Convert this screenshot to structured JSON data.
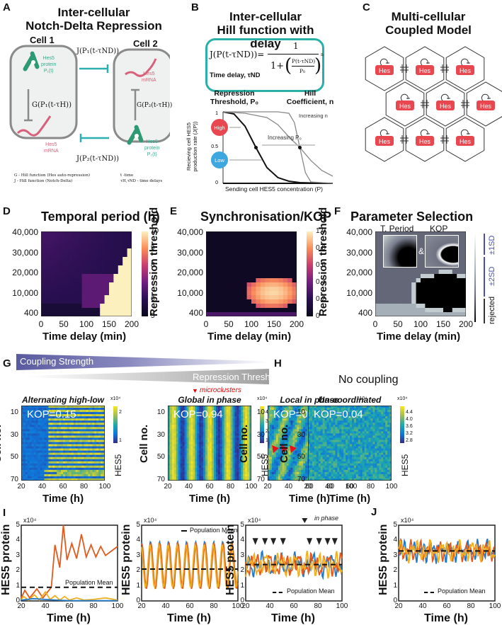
{
  "panels": {
    "A": {
      "label": "A",
      "title_line1": "Inter-cellular",
      "title_line2": "Notch-Delta Repression",
      "cell1": "Cell 1",
      "cell2": "Cell 2",
      "protein1": [
        "Hes5",
        "protein",
        "P₁(t)"
      ],
      "protein2": [
        "Hes5",
        "protein",
        "P₂(t)"
      ],
      "mrna": [
        "Hes5",
        "mRNA"
      ],
      "j1": "J(P₁(t-τND))",
      "j2": "J(P₂(t-τND))",
      "g1": "G(P₁(t-τH))",
      "g2": "G(P₂(t-τH))",
      "legend_g": "G - Hill function (Hes auto-repression)",
      "legend_j": "J -  Hill function (Notch-Delta)",
      "legend_t": "t -time",
      "legend_tau": "τH,τND - time delays",
      "colors": {
        "protein": "#3aaa8a",
        "mrna": "#d9607a",
        "inhibit": "#2bb0b0"
      }
    },
    "B": {
      "label": "B",
      "title_line1": "Inter-cellular",
      "title_line2": "Hill function with delay",
      "formula_lhs": "J(P(t-τND))=",
      "formula_num": "1",
      "formula_den_pre": "1+",
      "formula_inner_num": "P(t-τND)",
      "formula_inner_den": "P₀",
      "formula_exp": "n",
      "time_delay": "Time delay, τND",
      "threshold_l1": "Repression",
      "threshold_l2": "Threshold, P₀",
      "hill_l1": "Hill",
      "hill_l2": "Coefficient, n",
      "ylabel_l1": "Recieving cell HES5",
      "ylabel_l2": "production rate (J(P))",
      "xlabel": "Sending cell HES5 concentration (P)",
      "yticks": [
        "1",
        "0.5",
        "0"
      ],
      "high": "High",
      "low": "Low",
      "inc_p0": "Increasing P₀",
      "inc_n": "Increasing n",
      "colors": {
        "box": "#2bb0a8",
        "high": "#e8474f",
        "low": "#3ea7e0"
      }
    },
    "C": {
      "label": "C",
      "title_line1": "Multi-cellular",
      "title_line2": "Coupled Model",
      "hes": "Hes",
      "hes_color": "#e8474f"
    },
    "D": {
      "label": "D",
      "title": "Temporal period (h)",
      "ylabel": "Repression threshold",
      "xlabel": "Time delay (min)",
      "yticks": [
        "40,000",
        "30,000",
        "20,000",
        "10,000",
        "400"
      ],
      "xticks": [
        "0",
        "50",
        "100",
        "150",
        "200"
      ],
      "cbar_ticks": [
        "10",
        "9",
        "8",
        "7",
        "6",
        "5"
      ]
    },
    "E": {
      "label": "E",
      "title": "Synchronisation/KOP",
      "ylabel": "Repression threshold",
      "xlabel": "Time delay (min)",
      "yticks": [
        "40,000",
        "30,000",
        "20,000",
        "10,000",
        "400"
      ],
      "xticks": [
        "0",
        "50",
        "100",
        "150",
        "200"
      ],
      "cbar_ticks": [
        "1.0",
        "0.8",
        "0.6",
        "0.4",
        "0.2",
        "0"
      ]
    },
    "F": {
      "label": "F",
      "title": "Parameter Selection",
      "inset1": "T. Period",
      "inset2": "KOP",
      "amp": "&",
      "ylabel": "Repression threshold",
      "xlabel": "Time delay (min)",
      "yticks": [
        "40,000",
        "30,000",
        "20,000",
        "10,000",
        "400"
      ],
      "xticks": [
        "0",
        "50",
        "100",
        "150",
        "200"
      ],
      "legend_1sd": "±1SD",
      "legend_2sd": "±2SD",
      "legend_rej": "rejected",
      "legend_color": "#4b4fa8"
    },
    "G": {
      "label": "G",
      "coupling": "Coupling Strength",
      "threshold": "Repression Threshold",
      "microclusters": "microclusters",
      "kymographs": [
        {
          "title": "Alternating high-low",
          "kop": "KOP=0.15",
          "cbar_ticks": [
            "2",
            "1"
          ]
        },
        {
          "title": "Global in phase",
          "kop": "KOP=0.94",
          "cbar_ticks": [
            "4",
            "3",
            "2",
            "1"
          ]
        },
        {
          "title": "Local in phase",
          "kop": "KOP=0.28",
          "cbar_ticks": [
            "3",
            "2"
          ]
        }
      ]
    },
    "H": {
      "label": "H",
      "title": "No coupling",
      "kymograph": {
        "title": "Un-coordinated",
        "kop": "KOP=0.04",
        "cbar_ticks": [
          "4.4",
          "4.0",
          "3.6",
          "3.2",
          "2.8"
        ]
      }
    },
    "kymo_common": {
      "ylabel": "Cell no.",
      "xlabel": "Time (h)",
      "yticks": [
        "10",
        "30",
        "50",
        "70"
      ],
      "xticks": [
        "20",
        "40",
        "60",
        "80",
        "100"
      ],
      "cbar_label": "HES5",
      "cbar_exp": "x10⁴"
    },
    "I": {
      "label": "I"
    },
    "J": {
      "label": "J"
    },
    "ts_common": {
      "ylabel": "HES5 protein",
      "xlabel": "Time (h)",
      "yticks": [
        "5",
        "4",
        "3",
        "2",
        "1",
        "0"
      ],
      "xticks": [
        "20",
        "40",
        "60",
        "80",
        "100"
      ],
      "exp": "x10⁴",
      "mean_label": "Population Mean",
      "in_phase": "in phase"
    }
  },
  "chart_data": [
    {
      "type": "line",
      "title": "Inter-cellular Hill function with delay",
      "xlabel": "Sending cell HES5 concentration (P)",
      "ylabel": "Recieving cell HES5 production rate (J(P))",
      "ylim": [
        0,
        1
      ],
      "series": [
        {
          "name": "low P0",
          "x": [
            0,
            0.1,
            0.2,
            0.3,
            0.4,
            0.5,
            0.6,
            0.7,
            0.8,
            1.0
          ],
          "y": [
            1,
            0.97,
            0.8,
            0.5,
            0.22,
            0.08,
            0.03,
            0.01,
            0.005,
            0
          ]
        },
        {
          "name": "high P0",
          "x": [
            0,
            0.2,
            0.4,
            0.5,
            0.6,
            0.7,
            0.8,
            0.9,
            1.0
          ],
          "y": [
            1,
            0.98,
            0.92,
            0.82,
            0.65,
            0.5,
            0.32,
            0.18,
            0.1
          ]
        },
        {
          "name": "high n",
          "x": [
            0,
            0.5,
            0.6,
            0.65,
            0.7,
            0.75,
            0.8,
            1.0
          ],
          "y": [
            1,
            1,
            0.98,
            0.85,
            0.5,
            0.15,
            0.02,
            0
          ]
        }
      ]
    },
    {
      "type": "heatmap",
      "title": "Temporal period (h)",
      "xlabel": "Time delay (min)",
      "ylabel": "Repression threshold",
      "xlim": [
        0,
        200
      ],
      "ylim": [
        400,
        40000
      ],
      "colorbar_range": [
        5,
        10
      ],
      "description": "Mostly ~5.5-6 h; elevated ~7 h for delay 90-200 and threshold 5,000-20,000; >10 h in lower-right triangle (delay>130)"
    },
    {
      "type": "heatmap",
      "title": "Synchronisation/KOP",
      "xlabel": "Time delay (min)",
      "ylabel": "Repression threshold",
      "xlim": [
        0,
        200
      ],
      "ylim": [
        400,
        40000
      ],
      "colorbar_range": [
        0,
        1
      ],
      "description": "KOP ~0 except high (~0.9-1) for delay 90-200, threshold 3,000-18,000"
    },
    {
      "type": "heatmap",
      "title": "Parameter Selection",
      "xlabel": "Time delay (min)",
      "ylabel": "Repression threshold",
      "xlim": [
        0,
        200
      ],
      "ylim": [
        400,
        40000
      ],
      "legend": [
        "±1SD",
        "±2SD",
        "rejected"
      ]
    },
    {
      "type": "line",
      "title": "I - Alternating high-low",
      "xlabel": "Time (h)",
      "ylabel": "HES5 protein (x10^4)",
      "xlim": [
        20,
        100
      ],
      "ylim": [
        0,
        5
      ],
      "series": [
        {
          "name": "cell A (orange-red)",
          "x": [
            20,
            23,
            27,
            33,
            38,
            45,
            48,
            52,
            55,
            58,
            62,
            66,
            70,
            74,
            78,
            82,
            86,
            90,
            95,
            100
          ],
          "y": [
            0.2,
            0.7,
            0.2,
            0.8,
            0.2,
            0.9,
            3.7,
            2.2,
            5.0,
            2.7,
            3.8,
            2.8,
            4.4,
            2.9,
            3.7,
            2.9,
            3.6,
            3.0,
            3.3,
            3.6
          ]
        },
        {
          "name": "cell B (yellow)",
          "x": [
            20,
            22,
            26,
            31,
            35,
            40,
            44,
            48,
            52,
            56,
            60,
            66,
            72,
            80,
            90,
            100
          ],
          "y": [
            0.1,
            0.3,
            0.05,
            0.4,
            0.05,
            0.6,
            0.1,
            0.35,
            0.05,
            0.3,
            0.05,
            0.2,
            0.05,
            0.1,
            0.2,
            0.05
          ]
        },
        {
          "name": "cell C (blue)",
          "x": [
            20,
            30,
            40,
            50,
            60,
            100
          ],
          "y": [
            0.05,
            0.15,
            0.1,
            0.05,
            0.02,
            0.02
          ]
        },
        {
          "name": "Population Mean",
          "x": [
            20,
            100
          ],
          "y": [
            0.9,
            0.9
          ]
        }
      ]
    },
    {
      "type": "line",
      "title": "I - Global in phase",
      "xlabel": "Time (h)",
      "ylabel": "HES5 protein (x10^4)",
      "xlim": [
        20,
        100
      ],
      "ylim": [
        0,
        5
      ],
      "series": [
        {
          "name": "Population Mean",
          "x": [
            20,
            100
          ],
          "y": [
            2.1,
            2.1
          ]
        }
      ],
      "note": "Three cells oscillating synchronously between ~0.9 and ~4.0, period ~7.5 h"
    },
    {
      "type": "line",
      "title": "I - Local in phase",
      "xlabel": "Time (h)",
      "ylabel": "HES5 protein (x10^4)",
      "xlim": [
        20,
        100
      ],
      "ylim": [
        0,
        5
      ],
      "series": [
        {
          "name": "Population Mean",
          "x": [
            20,
            100
          ],
          "y": [
            2.4,
            2.4
          ]
        }
      ],
      "note": "Noisy oscillations 1.5-3.8 with in-phase peaks marked by arrowheads at ~28, 36, 43, 51, 73, 81, 88, 94 h"
    },
    {
      "type": "line",
      "title": "J - Un-coordinated",
      "xlabel": "Time (h)",
      "ylabel": "HES5 protein (x10^4)",
      "xlim": [
        20,
        100
      ],
      "ylim": [
        0,
        5
      ],
      "series": [
        {
          "name": "Population Mean",
          "x": [
            20,
            100
          ],
          "y": [
            3.3,
            3.3
          ]
        }
      ],
      "note": "Three noisy traces fluctuating 2.5-4.4 around mean"
    }
  ]
}
